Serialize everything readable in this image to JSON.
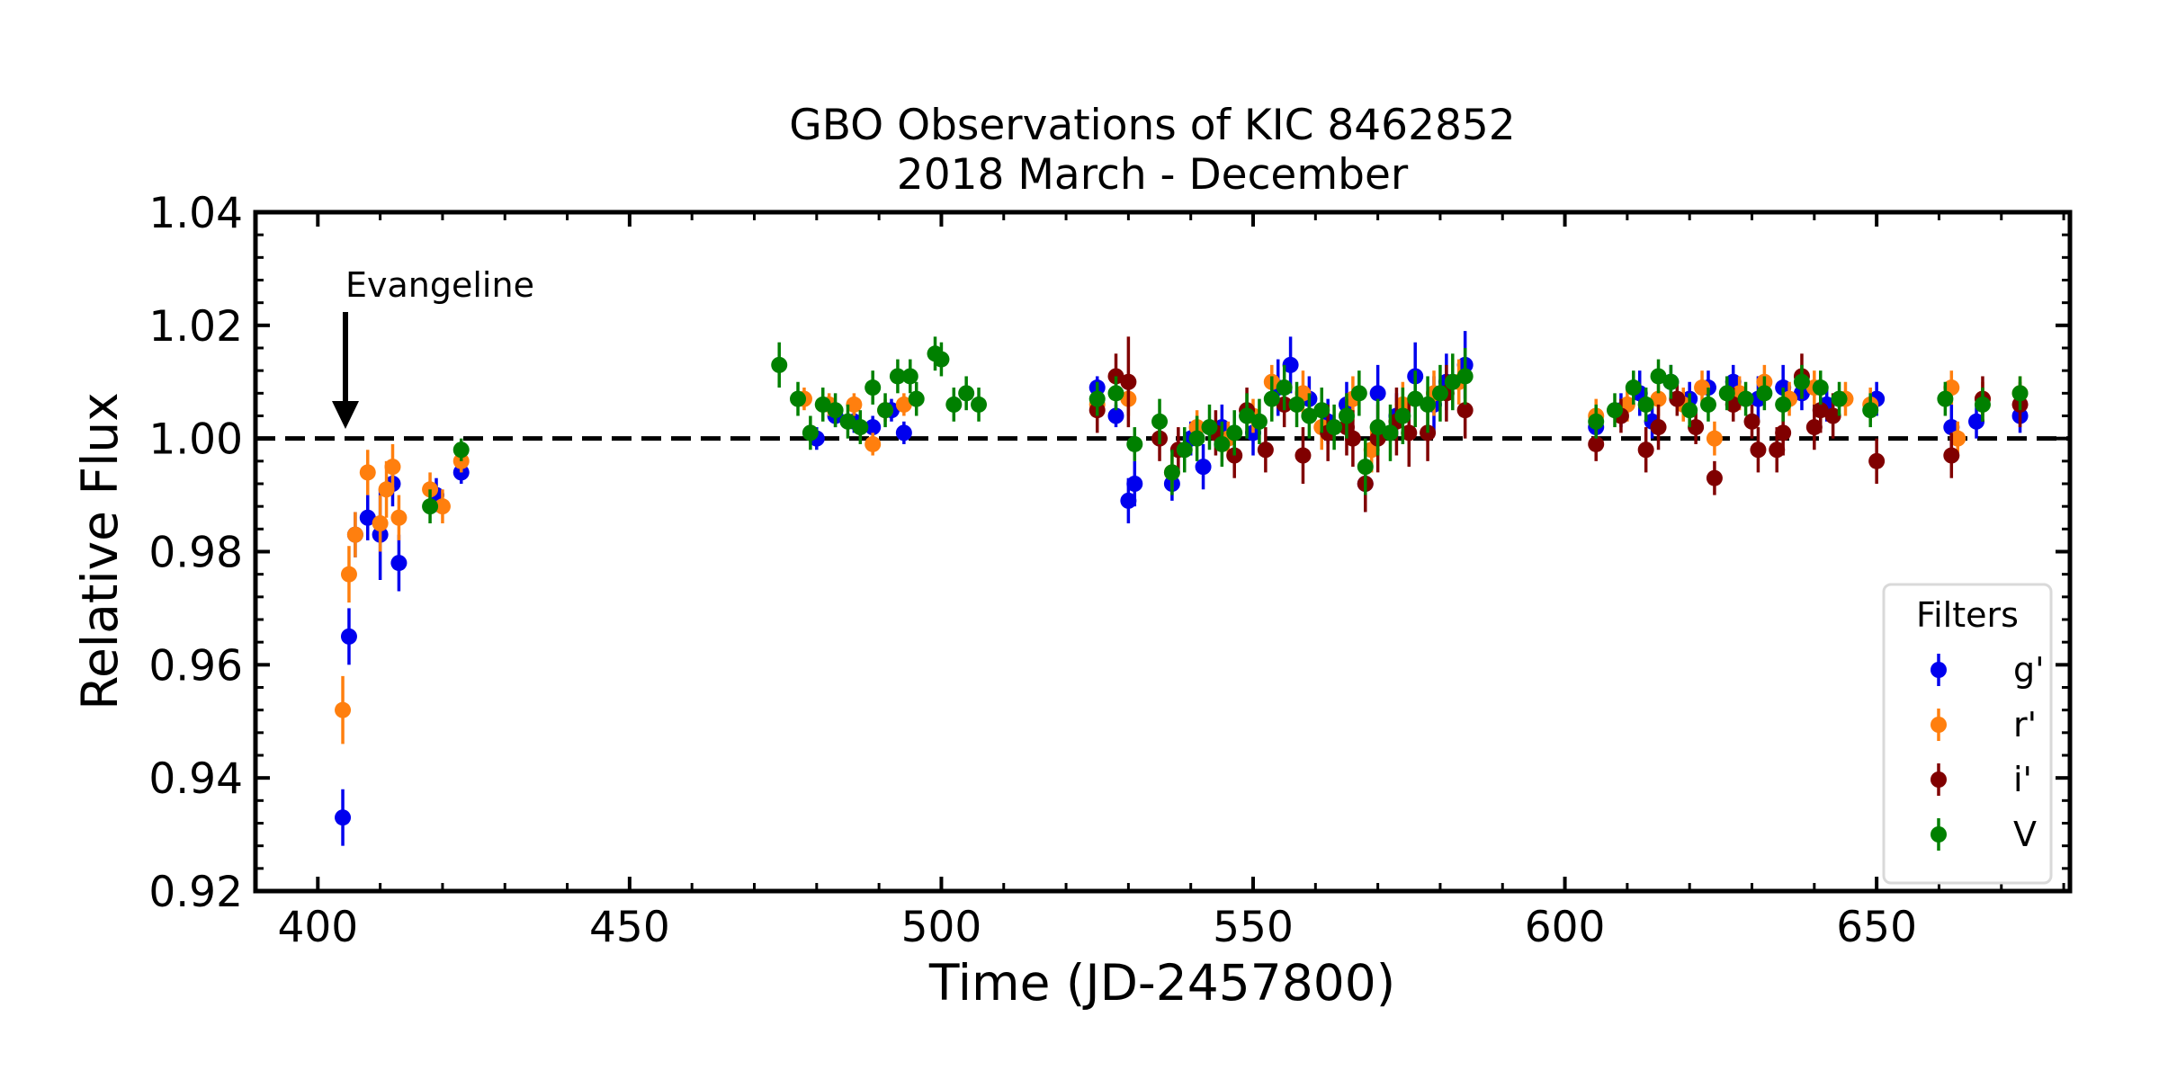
{
  "chart_data": {
    "type": "scatter",
    "title": "GBO Observations of KIC 8462852",
    "subtitle": "2018 March - December",
    "xlabel": "Time (JD-2457800)",
    "ylabel": "Relative Flux",
    "xlim": [
      390,
      681
    ],
    "ylim": [
      0.92,
      1.04
    ],
    "xticks": [
      400,
      450,
      500,
      550,
      600,
      650
    ],
    "xtick_labels": [
      "400",
      "450",
      "500",
      "550",
      "600",
      "650"
    ],
    "yticks": [
      0.92,
      0.94,
      0.96,
      0.98,
      1.0,
      1.02,
      1.04
    ],
    "ytick_labels": [
      "0.92",
      "0.94",
      "0.96",
      "0.98",
      "1.00",
      "1.02",
      "1.04"
    ],
    "reference_line": {
      "y": 1.0,
      "style": "dashed",
      "color": "#000000"
    },
    "annotation": {
      "text": "Evangeline",
      "x": 404,
      "y": 1.002,
      "arrow": "down"
    },
    "legend": {
      "title": "Filters",
      "position": "lower-right"
    },
    "grid": false,
    "series": [
      {
        "name": "g'",
        "color": "#0000ee",
        "points": [
          [
            404,
            0.933,
            0.005
          ],
          [
            405,
            0.965,
            0.005
          ],
          [
            406,
            0.983,
            0.004
          ],
          [
            408,
            0.986,
            0.004
          ],
          [
            410,
            0.983,
            0.008
          ],
          [
            412,
            0.992,
            0.004
          ],
          [
            413,
            0.978,
            0.005
          ],
          [
            419,
            0.99,
            0.003
          ],
          [
            423,
            0.994,
            0.002
          ],
          [
            480,
            1.0,
            0.002
          ],
          [
            483,
            1.004,
            0.002
          ],
          [
            486,
            1.003,
            0.002
          ],
          [
            489,
            1.002,
            0.002
          ],
          [
            492,
            1.005,
            0.002
          ],
          [
            494,
            1.001,
            0.002
          ],
          [
            525,
            1.009,
            0.002
          ],
          [
            528,
            1.004,
            0.002
          ],
          [
            530,
            0.989,
            0.004
          ],
          [
            531,
            0.992,
            0.004
          ],
          [
            537,
            0.992,
            0.003
          ],
          [
            540,
            1.0,
            0.003
          ],
          [
            542,
            0.995,
            0.004
          ],
          [
            545,
            1.002,
            0.004
          ],
          [
            550,
            1.001,
            0.004
          ],
          [
            554,
            1.009,
            0.005
          ],
          [
            556,
            1.013,
            0.005
          ],
          [
            559,
            1.007,
            0.004
          ],
          [
            562,
            1.003,
            0.004
          ],
          [
            565,
            1.006,
            0.004
          ],
          [
            568,
            0.992,
            0.005
          ],
          [
            570,
            1.008,
            0.005
          ],
          [
            573,
            1.004,
            0.004
          ],
          [
            576,
            1.011,
            0.006
          ],
          [
            579,
            1.006,
            0.005
          ],
          [
            581,
            1.01,
            0.005
          ],
          [
            584,
            1.013,
            0.006
          ],
          [
            605,
            1.002,
            0.003
          ],
          [
            609,
            1.005,
            0.003
          ],
          [
            612,
            1.008,
            0.004
          ],
          [
            614,
            1.003,
            0.003
          ],
          [
            617,
            1.01,
            0.003
          ],
          [
            620,
            1.007,
            0.003
          ],
          [
            623,
            1.009,
            0.003
          ],
          [
            627,
            1.01,
            0.003
          ],
          [
            631,
            1.007,
            0.004
          ],
          [
            635,
            1.009,
            0.004
          ],
          [
            638,
            1.008,
            0.003
          ],
          [
            642,
            1.006,
            0.003
          ],
          [
            650,
            1.007,
            0.003
          ],
          [
            662,
            1.002,
            0.004
          ],
          [
            666,
            1.003,
            0.003
          ],
          [
            673,
            1.004,
            0.003
          ]
        ]
      },
      {
        "name": "r'",
        "color": "#ff7f0e",
        "points": [
          [
            404,
            0.952,
            0.006
          ],
          [
            405,
            0.976,
            0.005
          ],
          [
            406,
            0.983,
            0.004
          ],
          [
            408,
            0.994,
            0.004
          ],
          [
            410,
            0.985,
            0.005
          ],
          [
            411,
            0.991,
            0.005
          ],
          [
            412,
            0.995,
            0.004
          ],
          [
            413,
            0.986,
            0.004
          ],
          [
            418,
            0.991,
            0.003
          ],
          [
            420,
            0.988,
            0.003
          ],
          [
            423,
            0.996,
            0.002
          ],
          [
            478,
            1.007,
            0.002
          ],
          [
            482,
            1.006,
            0.002
          ],
          [
            486,
            1.006,
            0.002
          ],
          [
            489,
            0.999,
            0.002
          ],
          [
            491,
            1.005,
            0.002
          ],
          [
            494,
            1.006,
            0.002
          ],
          [
            525,
            1.006,
            0.002
          ],
          [
            530,
            1.007,
            0.003
          ],
          [
            537,
            0.994,
            0.003
          ],
          [
            541,
            1.002,
            0.003
          ],
          [
            546,
            1.0,
            0.003
          ],
          [
            550,
            1.004,
            0.003
          ],
          [
            553,
            1.01,
            0.003
          ],
          [
            558,
            1.008,
            0.004
          ],
          [
            561,
            1.002,
            0.004
          ],
          [
            566,
            1.007,
            0.004
          ],
          [
            569,
            0.998,
            0.004
          ],
          [
            574,
            1.006,
            0.004
          ],
          [
            579,
            1.008,
            0.004
          ],
          [
            583,
            1.01,
            0.004
          ],
          [
            605,
            1.004,
            0.003
          ],
          [
            610,
            1.006,
            0.003
          ],
          [
            615,
            1.007,
            0.003
          ],
          [
            619,
            1.006,
            0.003
          ],
          [
            622,
            1.009,
            0.003
          ],
          [
            624,
            1.0,
            0.003
          ],
          [
            628,
            1.008,
            0.003
          ],
          [
            632,
            1.01,
            0.003
          ],
          [
            636,
            1.007,
            0.003
          ],
          [
            640,
            1.009,
            0.003
          ],
          [
            645,
            1.007,
            0.003
          ],
          [
            649,
            1.006,
            0.003
          ],
          [
            662,
            1.009,
            0.003
          ],
          [
            663,
            1.0,
            0.003
          ],
          [
            667,
            1.007,
            0.003
          ],
          [
            673,
            1.008,
            0.003
          ]
        ]
      },
      {
        "name": "i'",
        "color": "#800000",
        "points": [
          [
            525,
            1.005,
            0.004
          ],
          [
            528,
            1.011,
            0.004
          ],
          [
            530,
            1.01,
            0.008
          ],
          [
            535,
            1.0,
            0.004
          ],
          [
            538,
            0.998,
            0.004
          ],
          [
            544,
            1.001,
            0.004
          ],
          [
            547,
            0.997,
            0.004
          ],
          [
            549,
            1.005,
            0.004
          ],
          [
            552,
            0.998,
            0.004
          ],
          [
            555,
            1.006,
            0.004
          ],
          [
            558,
            0.997,
            0.005
          ],
          [
            562,
            1.001,
            0.005
          ],
          [
            565,
            1.002,
            0.005
          ],
          [
            566,
            1.0,
            0.005
          ],
          [
            568,
            0.992,
            0.005
          ],
          [
            570,
            1.0,
            0.006
          ],
          [
            573,
            1.003,
            0.006
          ],
          [
            575,
            1.001,
            0.006
          ],
          [
            578,
            1.001,
            0.005
          ],
          [
            581,
            1.008,
            0.005
          ],
          [
            584,
            1.005,
            0.005
          ],
          [
            605,
            0.999,
            0.003
          ],
          [
            609,
            1.004,
            0.003
          ],
          [
            613,
            0.998,
            0.004
          ],
          [
            615,
            1.002,
            0.004
          ],
          [
            618,
            1.007,
            0.003
          ],
          [
            621,
            1.002,
            0.003
          ],
          [
            624,
            0.993,
            0.003
          ],
          [
            627,
            1.006,
            0.003
          ],
          [
            630,
            1.003,
            0.003
          ],
          [
            631,
            0.998,
            0.004
          ],
          [
            634,
            0.998,
            0.004
          ],
          [
            635,
            1.001,
            0.004
          ],
          [
            638,
            1.011,
            0.004
          ],
          [
            640,
            1.002,
            0.004
          ],
          [
            641,
            1.005,
            0.004
          ],
          [
            643,
            1.004,
            0.004
          ],
          [
            650,
            0.996,
            0.004
          ],
          [
            662,
            0.997,
            0.004
          ],
          [
            667,
            1.007,
            0.004
          ],
          [
            673,
            1.006,
            0.004
          ]
        ]
      },
      {
        "name": "V",
        "color": "#008000",
        "points": [
          [
            418,
            0.988,
            0.003
          ],
          [
            423,
            0.998,
            0.002
          ],
          [
            474,
            1.013,
            0.004
          ],
          [
            477,
            1.007,
            0.003
          ],
          [
            479,
            1.001,
            0.003
          ],
          [
            481,
            1.006,
            0.003
          ],
          [
            483,
            1.005,
            0.003
          ],
          [
            485,
            1.003,
            0.003
          ],
          [
            487,
            1.002,
            0.003
          ],
          [
            489,
            1.009,
            0.003
          ],
          [
            491,
            1.005,
            0.003
          ],
          [
            493,
            1.011,
            0.003
          ],
          [
            495,
            1.011,
            0.003
          ],
          [
            496,
            1.007,
            0.003
          ],
          [
            499,
            1.015,
            0.003
          ],
          [
            500,
            1.014,
            0.003
          ],
          [
            502,
            1.006,
            0.003
          ],
          [
            504,
            1.008,
            0.003
          ],
          [
            506,
            1.006,
            0.003
          ],
          [
            525,
            1.007,
            0.003
          ],
          [
            528,
            1.008,
            0.003
          ],
          [
            531,
            0.999,
            0.003
          ],
          [
            535,
            1.003,
            0.004
          ],
          [
            537,
            0.994,
            0.004
          ],
          [
            539,
            0.998,
            0.004
          ],
          [
            541,
            1.0,
            0.004
          ],
          [
            543,
            1.002,
            0.004
          ],
          [
            545,
            0.999,
            0.004
          ],
          [
            547,
            1.001,
            0.004
          ],
          [
            549,
            1.004,
            0.004
          ],
          [
            551,
            1.003,
            0.004
          ],
          [
            553,
            1.007,
            0.004
          ],
          [
            555,
            1.009,
            0.004
          ],
          [
            557,
            1.006,
            0.004
          ],
          [
            559,
            1.004,
            0.004
          ],
          [
            561,
            1.005,
            0.004
          ],
          [
            563,
            1.002,
            0.004
          ],
          [
            565,
            1.004,
            0.004
          ],
          [
            567,
            1.008,
            0.004
          ],
          [
            568,
            0.995,
            0.005
          ],
          [
            570,
            1.002,
            0.005
          ],
          [
            572,
            1.001,
            0.005
          ],
          [
            574,
            1.004,
            0.005
          ],
          [
            576,
            1.007,
            0.005
          ],
          [
            578,
            1.006,
            0.005
          ],
          [
            580,
            1.008,
            0.005
          ],
          [
            582,
            1.01,
            0.005
          ],
          [
            584,
            1.011,
            0.005
          ],
          [
            605,
            1.003,
            0.003
          ],
          [
            608,
            1.005,
            0.003
          ],
          [
            611,
            1.009,
            0.003
          ],
          [
            613,
            1.006,
            0.003
          ],
          [
            615,
            1.011,
            0.003
          ],
          [
            617,
            1.01,
            0.003
          ],
          [
            620,
            1.005,
            0.003
          ],
          [
            623,
            1.006,
            0.003
          ],
          [
            626,
            1.008,
            0.003
          ],
          [
            629,
            1.007,
            0.003
          ],
          [
            632,
            1.008,
            0.003
          ],
          [
            635,
            1.006,
            0.003
          ],
          [
            638,
            1.01,
            0.003
          ],
          [
            641,
            1.009,
            0.003
          ],
          [
            644,
            1.007,
            0.003
          ],
          [
            649,
            1.005,
            0.003
          ],
          [
            661,
            1.007,
            0.003
          ],
          [
            667,
            1.006,
            0.003
          ],
          [
            673,
            1.008,
            0.003
          ]
        ]
      }
    ]
  }
}
